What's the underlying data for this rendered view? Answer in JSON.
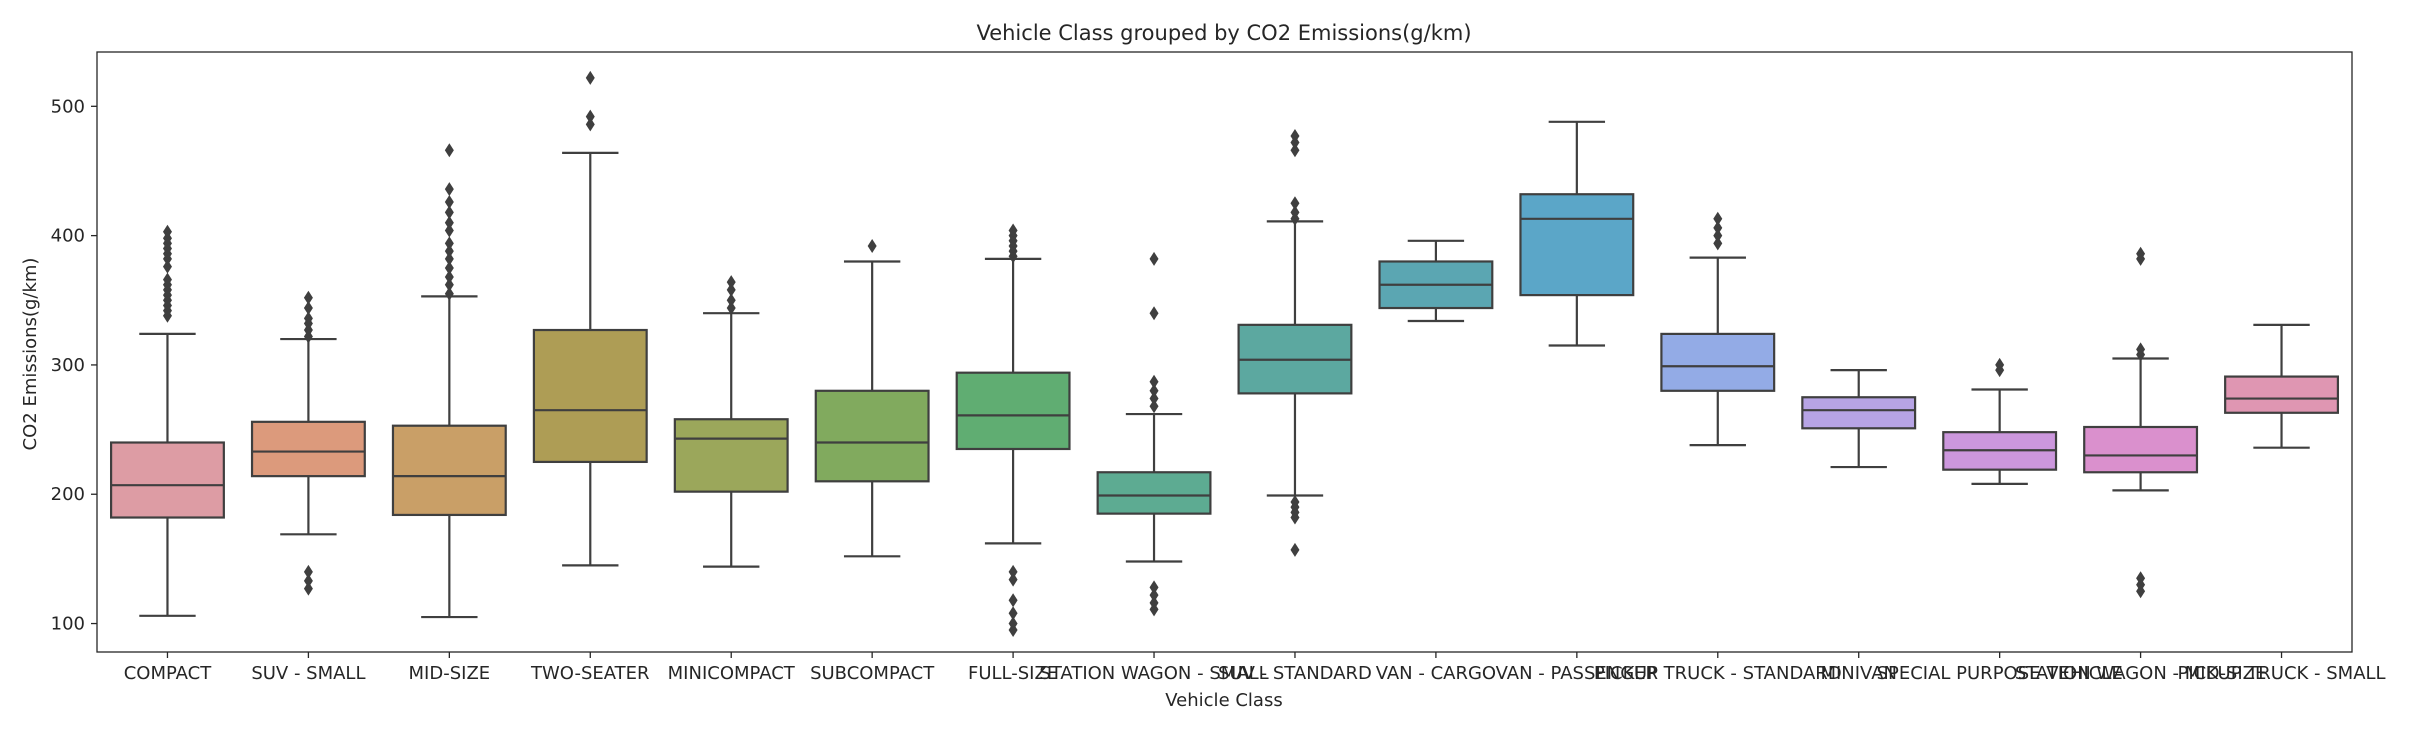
{
  "chart_data": {
    "type": "box",
    "title": "Vehicle Class grouped by CO2 Emissions(g/km)",
    "xlabel": "Vehicle Class",
    "ylabel": "CO2 Emissions(g/km)",
    "ylim": [
      78,
      542
    ],
    "yticks": [
      100,
      200,
      300,
      400,
      500
    ],
    "grid": false,
    "legend": "none",
    "categories": [
      {
        "label": "COMPACT",
        "color": "#dd9ca4",
        "whislo": 106,
        "q1": 182,
        "median": 207,
        "q3": 240,
        "whishi": 324,
        "fliers": [
          338,
          342,
          346,
          350,
          354,
          358,
          362,
          366,
          376,
          382,
          386,
          390,
          394,
          398,
          403
        ]
      },
      {
        "label": "SUV - SMALL",
        "color": "#dc9a7c",
        "whislo": 169,
        "q1": 214,
        "median": 233,
        "q3": 256,
        "whishi": 320,
        "fliers": [
          127,
          133,
          140,
          322,
          327,
          332,
          336,
          344,
          352
        ]
      },
      {
        "label": "MID-SIZE",
        "color": "#c99f67",
        "whislo": 105,
        "q1": 184,
        "median": 214,
        "q3": 253,
        "whishi": 353,
        "fliers": [
          355,
          362,
          368,
          375,
          382,
          388,
          394,
          404,
          410,
          418,
          426,
          436,
          466
        ]
      },
      {
        "label": "TWO-SEATER",
        "color": "#ae9d55",
        "whislo": 145,
        "q1": 225,
        "median": 265,
        "q3": 327,
        "whishi": 464,
        "fliers": [
          486,
          492,
          522
        ]
      },
      {
        "label": "MINICOMPACT",
        "color": "#9ba75b",
        "whislo": 144,
        "q1": 202,
        "median": 243,
        "q3": 258,
        "whishi": 340,
        "fliers": [
          344,
          350,
          358,
          364
        ]
      },
      {
        "label": "SUBCOMPACT",
        "color": "#81aa5e",
        "whislo": 152,
        "q1": 210,
        "median": 240,
        "q3": 280,
        "whishi": 380,
        "fliers": [
          392
        ]
      },
      {
        "label": "FULL-SIZE",
        "color": "#60ad72",
        "whislo": 162,
        "q1": 235,
        "median": 261,
        "q3": 294,
        "whishi": 382,
        "fliers": [
          95,
          100,
          108,
          118,
          134,
          140,
          384,
          388,
          392,
          396,
          400,
          404
        ]
      },
      {
        "label": "STATION WAGON - SMALL",
        "color": "#5dab92",
        "whislo": 148,
        "q1": 185,
        "median": 199,
        "q3": 217,
        "whishi": 262,
        "fliers": [
          111,
          116,
          122,
          128,
          268,
          274,
          280,
          287,
          340,
          382
        ]
      },
      {
        "label": "SUV - STANDARD",
        "color": "#5ca8a0",
        "whislo": 199,
        "q1": 278,
        "median": 304,
        "q3": 331,
        "whishi": 411,
        "fliers": [
          157,
          182,
          186,
          190,
          194,
          413,
          418,
          425,
          466,
          472,
          477
        ]
      },
      {
        "label": "VAN - CARGO",
        "color": "#5ba6b2",
        "whislo": 334,
        "q1": 344,
        "median": 362,
        "q3": 380,
        "whishi": 396,
        "fliers": []
      },
      {
        "label": "VAN - PASSENGER",
        "color": "#5ba6c8",
        "whislo": 315,
        "q1": 354,
        "median": 413,
        "q3": 432,
        "whishi": 488,
        "fliers": []
      },
      {
        "label": "PICKUP TRUCK - STANDARD",
        "color": "#93abe6",
        "whislo": 238,
        "q1": 280,
        "median": 299,
        "q3": 324,
        "whishi": 383,
        "fliers": [
          394,
          400,
          406,
          413
        ]
      },
      {
        "label": "MINIVAN",
        "color": "#b7a4e5",
        "whislo": 221,
        "q1": 251,
        "median": 265,
        "q3": 275,
        "whishi": 296,
        "fliers": []
      },
      {
        "label": "SPECIAL PURPOSE VEHICLE",
        "color": "#cc97dd",
        "whislo": 208,
        "q1": 219,
        "median": 234,
        "q3": 248,
        "whishi": 281,
        "fliers": [
          296,
          300
        ]
      },
      {
        "label": "STATION WAGON - MID-SIZE",
        "color": "#da90cd",
        "whislo": 203,
        "q1": 217,
        "median": 230,
        "q3": 252,
        "whishi": 305,
        "fliers": [
          125,
          130,
          135,
          308,
          312,
          382,
          386
        ]
      },
      {
        "label": "PICKUP TRUCK - SMALL",
        "color": "#df96b2",
        "whislo": 236,
        "q1": 263,
        "median": 274,
        "q3": 291,
        "whishi": 331,
        "fliers": []
      }
    ]
  }
}
